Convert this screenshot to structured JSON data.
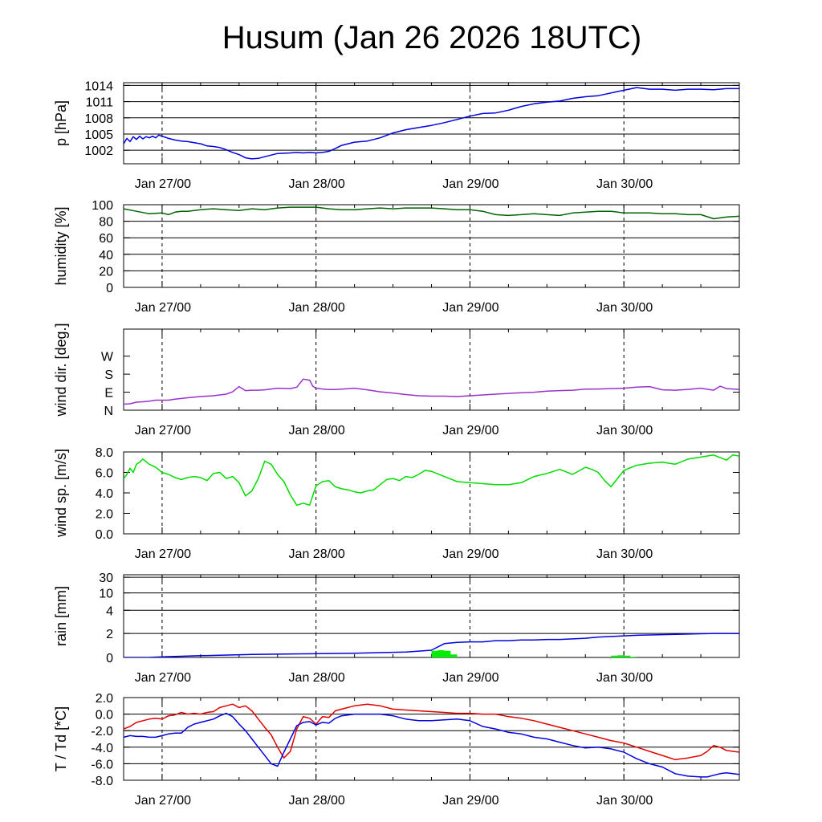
{
  "title": "Husum (Jan 26 2026 18UTC)",
  "x_tick_labels": [
    "Jan 27/00",
    "Jan 28/00",
    "Jan 29/00",
    "Jan 30/00"
  ],
  "chart_data": [
    {
      "type": "line",
      "id": "pressure",
      "ylabel": "p [hPa]",
      "ylim": [
        999.5,
        1014.5
      ],
      "yticks": [
        1002,
        1005,
        1008,
        1011,
        1014
      ],
      "ytick_labels": [
        "1002",
        "1005",
        "1008",
        "1011",
        "1014"
      ],
      "x_unit": "hours since Jan 26 18UTC",
      "xlim": [
        0,
        96
      ],
      "series": [
        {
          "name": "pressure",
          "color": "#0000e0",
          "x": [
            0,
            0.5,
            1,
            1.5,
            2,
            2.5,
            3,
            3.5,
            4,
            4.5,
            5,
            5.5,
            6,
            6.5,
            7,
            8,
            9,
            10,
            12,
            13,
            14,
            15,
            16,
            17,
            18,
            19,
            20,
            21,
            22,
            24,
            26,
            27,
            28,
            29,
            30,
            31,
            32,
            33,
            34,
            35,
            36,
            38,
            40,
            42,
            44,
            46,
            48,
            50,
            52,
            54,
            56,
            58,
            60,
            62,
            64,
            66,
            68,
            70,
            72,
            74,
            76,
            78,
            80,
            82,
            84,
            86,
            88,
            90,
            92,
            94,
            96
          ],
          "y": [
            1003.2,
            1004.2,
            1003.6,
            1004.5,
            1004.0,
            1004.6,
            1004.1,
            1004.5,
            1004.3,
            1004.6,
            1004.3,
            1004.8,
            1004.6,
            1004.4,
            1004.2,
            1003.9,
            1003.7,
            1003.6,
            1003.2,
            1002.8,
            1002.7,
            1002.5,
            1002.1,
            1001.6,
            1001.2,
            1000.6,
            1000.4,
            1000.5,
            1000.8,
            1001.4,
            1001.5,
            1001.6,
            1001.5,
            1001.6,
            1001.5,
            1001.6,
            1001.8,
            1002.3,
            1002.9,
            1003.2,
            1003.5,
            1003.7,
            1004.3,
            1005.2,
            1005.8,
            1006.2,
            1006.6,
            1007.1,
            1007.7,
            1008.3,
            1008.8,
            1008.9,
            1009.4,
            1010.1,
            1010.6,
            1010.9,
            1011.1,
            1011.6,
            1011.9,
            1012.1,
            1012.6,
            1013.1,
            1013.6,
            1013.3,
            1013.3,
            1013.1,
            1013.3,
            1013.3,
            1013.2,
            1013.4,
            1013.4
          ]
        }
      ]
    },
    {
      "type": "line",
      "id": "humidity",
      "ylabel": "humidity [%]",
      "ylim": [
        0,
        100
      ],
      "yticks": [
        0,
        20,
        40,
        60,
        80,
        100
      ],
      "ytick_labels": [
        "0",
        "20",
        "40",
        "60",
        "80",
        "100"
      ],
      "x_unit": "hours since Jan 26 18UTC",
      "xlim": [
        0,
        96
      ],
      "series": [
        {
          "name": "humidity",
          "color": "#006400",
          "x": [
            0,
            2,
            4,
            6,
            7,
            8,
            9,
            10,
            12,
            14,
            16,
            18,
            20,
            22,
            24,
            26,
            28,
            30,
            32,
            34,
            36,
            38,
            40,
            42,
            44,
            46,
            48,
            50,
            52,
            54,
            56,
            58,
            60,
            62,
            64,
            66,
            68,
            70,
            72,
            74,
            76,
            78,
            80,
            82,
            84,
            86,
            88,
            90,
            92,
            94,
            96
          ],
          "y": [
            95,
            92,
            89,
            90,
            88,
            91,
            92,
            92,
            94,
            95,
            94,
            93,
            95,
            94,
            96,
            97,
            97,
            97,
            95,
            94,
            94,
            95,
            96,
            95,
            96,
            96,
            96,
            95,
            94,
            94,
            92,
            88,
            87,
            88,
            89,
            88,
            87,
            90,
            91,
            92,
            92,
            90,
            90,
            90,
            89,
            89,
            88,
            88,
            83,
            85,
            86
          ]
        }
      ]
    },
    {
      "type": "line",
      "id": "wind_direction",
      "ylabel": "wind dir. [deg.]",
      "ylim": [
        0,
        405
      ],
      "yticks": [
        0,
        90,
        180,
        270
      ],
      "ytick_labels": [
        "N",
        "E",
        "S",
        "W"
      ],
      "x_unit": "hours since Jan 26 18UTC",
      "xlim": [
        0,
        96
      ],
      "series": [
        {
          "name": "wind direction",
          "color": "#9932cc",
          "x": [
            0,
            1,
            2,
            3,
            4,
            5,
            6,
            7,
            8,
            10,
            12,
            14,
            16,
            17,
            18,
            19,
            20,
            21,
            22,
            24,
            26,
            27,
            28,
            29,
            29.5,
            30,
            31,
            32,
            33,
            34,
            36,
            38,
            40,
            42,
            44,
            46,
            48,
            50,
            52,
            54,
            56,
            58,
            60,
            62,
            64,
            66,
            68,
            70,
            72,
            74,
            76,
            78,
            80,
            82,
            84,
            86,
            88,
            90,
            92,
            93,
            94,
            96
          ],
          "y": [
            30,
            32,
            40,
            42,
            45,
            50,
            50,
            50,
            55,
            62,
            68,
            72,
            80,
            92,
            118,
            98,
            100,
            100,
            102,
            110,
            108,
            115,
            155,
            150,
            120,
            110,
            106,
            103,
            103,
            105,
            110,
            102,
            92,
            86,
            78,
            72,
            70,
            70,
            68,
            72,
            76,
            80,
            84,
            87,
            90,
            95,
            98,
            100,
            105,
            106,
            108,
            110,
            115,
            118,
            102,
            100,
            104,
            110,
            100,
            120,
            108,
            104
          ]
        }
      ]
    },
    {
      "type": "line",
      "id": "wind_speed",
      "ylabel": "wind sp. [m/s]",
      "ylim": [
        0,
        8
      ],
      "yticks": [
        0,
        2,
        4,
        6,
        8
      ],
      "ytick_labels": [
        "0.0",
        "2.0",
        "4.0",
        "6.0",
        "8.0"
      ],
      "x_unit": "hours since Jan 26 18UTC",
      "xlim": [
        0,
        96
      ],
      "series": [
        {
          "name": "wind speed",
          "color": "#00dd00",
          "x": [
            0,
            0.5,
            1,
            1.5,
            2,
            2.5,
            3,
            4,
            5,
            6,
            7,
            8,
            9,
            10,
            11,
            12,
            13,
            14,
            15,
            16,
            17,
            18,
            19,
            20,
            21,
            22,
            23,
            24,
            25,
            26,
            27,
            28,
            29,
            30,
            31,
            32,
            33,
            34,
            35,
            36,
            37,
            38,
            39,
            40,
            41,
            42,
            43,
            44,
            45,
            46,
            47,
            48,
            50,
            52,
            54,
            56,
            58,
            60,
            62,
            64,
            66,
            68,
            70,
            72,
            73,
            74,
            75,
            76,
            78,
            80,
            82,
            84,
            86,
            88,
            90,
            92,
            94,
            95,
            96
          ],
          "y": [
            5.4,
            5.8,
            6.4,
            6.0,
            6.8,
            7.0,
            7.3,
            6.8,
            6.5,
            6.0,
            5.8,
            5.5,
            5.3,
            5.5,
            5.6,
            5.5,
            5.2,
            5.9,
            6.0,
            5.4,
            5.6,
            5.0,
            3.7,
            4.2,
            5.4,
            7.1,
            6.8,
            5.8,
            5.1,
            3.8,
            2.8,
            3.0,
            2.8,
            4.7,
            5.1,
            5.2,
            4.6,
            4.4,
            4.3,
            4.1,
            4.0,
            4.2,
            4.3,
            4.8,
            5.3,
            5.4,
            5.2,
            5.6,
            5.5,
            5.8,
            6.2,
            6.1,
            5.6,
            5.1,
            5.0,
            4.9,
            4.8,
            4.8,
            5.0,
            5.6,
            5.9,
            6.3,
            5.8,
            6.5,
            6.3,
            6.0,
            5.2,
            4.6,
            6.2,
            6.7,
            6.9,
            7.0,
            6.8,
            7.3,
            7.5,
            7.7,
            7.2,
            7.7,
            7.6
          ]
        }
      ]
    },
    {
      "type": "bar+line",
      "id": "rain",
      "ylabel": "rain [mm]",
      "y_scale": "nonlinear",
      "ylim": [
        0,
        30
      ],
      "yticks": [
        0,
        2,
        4,
        10,
        30
      ],
      "ytick_labels": [
        "0",
        "2",
        "4",
        "10",
        "30"
      ],
      "x_unit": "hours since Jan 26 18UTC",
      "xlim": [
        0,
        96
      ],
      "series": [
        {
          "name": "accumulated precipitation",
          "color": "#0000e0",
          "x": [
            0,
            4,
            6,
            12,
            20,
            28,
            36,
            44,
            48,
            50,
            52,
            54,
            56,
            58,
            60,
            62,
            64,
            66,
            68,
            70,
            72,
            74,
            76,
            78,
            80,
            84,
            88,
            92,
            96
          ],
          "y": [
            0,
            0,
            0.05,
            0.15,
            0.25,
            0.3,
            0.35,
            0.45,
            0.6,
            1.15,
            1.25,
            1.3,
            1.3,
            1.4,
            1.4,
            1.45,
            1.45,
            1.5,
            1.5,
            1.55,
            1.6,
            1.7,
            1.75,
            1.8,
            1.85,
            1.9,
            1.95,
            2.0,
            2.0
          ]
        },
        {
          "name": "hourly precipitation",
          "color": "#00ee00",
          "kind": "bar",
          "x": [
            48,
            49,
            50,
            51,
            76,
            77,
            78,
            79
          ],
          "y": [
            0.55,
            0.6,
            0.55,
            0.25,
            0.15,
            0.18,
            0.15,
            0.05
          ]
        }
      ]
    },
    {
      "type": "line",
      "id": "temperature",
      "ylabel": "T / Td [*C]",
      "ylim": [
        -8,
        2
      ],
      "yticks": [
        -8,
        -6,
        -4,
        -2,
        0,
        2
      ],
      "ytick_labels": [
        "-8.0",
        "-6.0",
        "-4.0",
        "-2.0",
        "0.0",
        "2.0"
      ],
      "x_unit": "hours since Jan 26 18UTC",
      "xlim": [
        0,
        96
      ],
      "series": [
        {
          "name": "T",
          "color": "#e00000",
          "x": [
            0,
            1,
            2,
            3,
            4,
            5,
            6,
            7,
            8,
            9,
            10,
            11,
            12,
            13,
            14,
            15,
            16,
            17,
            18,
            19,
            20,
            21,
            22,
            23,
            24,
            25,
            26,
            27,
            28,
            29,
            30,
            31,
            32,
            33,
            34,
            36,
            38,
            40,
            42,
            44,
            46,
            48,
            50,
            52,
            54,
            56,
            58,
            60,
            62,
            64,
            66,
            68,
            70,
            72,
            74,
            76,
            78,
            80,
            82,
            84,
            86,
            88,
            90,
            91,
            92,
            93,
            94,
            96
          ],
          "y": [
            -1.8,
            -1.5,
            -1.0,
            -0.8,
            -0.6,
            -0.5,
            -0.6,
            -0.2,
            -0.1,
            0.2,
            0.0,
            0.1,
            0.0,
            0.2,
            0.3,
            0.8,
            1.0,
            1.2,
            0.8,
            1.0,
            0.4,
            -0.6,
            -1.6,
            -2.5,
            -4.0,
            -5.3,
            -4.5,
            -1.8,
            -0.3,
            -0.5,
            -1.2,
            -0.3,
            -0.4,
            0.4,
            0.6,
            1.0,
            1.2,
            1.0,
            0.6,
            0.5,
            0.4,
            0.3,
            0.2,
            0.1,
            0.1,
            0.0,
            0.0,
            -0.3,
            -0.5,
            -0.8,
            -1.2,
            -1.6,
            -2.0,
            -2.4,
            -2.8,
            -3.2,
            -3.5,
            -4.0,
            -4.5,
            -5.0,
            -5.5,
            -5.3,
            -5.0,
            -4.5,
            -3.8,
            -4.0,
            -4.4,
            -4.6
          ]
        },
        {
          "name": "Td",
          "color": "#0000e0",
          "x": [
            0,
            1,
            2,
            3,
            4,
            5,
            6,
            7,
            8,
            9,
            10,
            11,
            12,
            13,
            14,
            15,
            16,
            17,
            18,
            19,
            20,
            21,
            22,
            23,
            24,
            25,
            26,
            27,
            28,
            29,
            30,
            31,
            32,
            33,
            34,
            36,
            38,
            40,
            42,
            44,
            46,
            48,
            50,
            52,
            54,
            56,
            58,
            60,
            62,
            64,
            66,
            68,
            70,
            72,
            74,
            76,
            78,
            80,
            82,
            84,
            86,
            88,
            90,
            91,
            92,
            93,
            94,
            96
          ],
          "y": [
            -2.8,
            -2.6,
            -2.7,
            -2.7,
            -2.8,
            -2.8,
            -2.6,
            -2.4,
            -2.3,
            -2.3,
            -1.6,
            -1.2,
            -1.0,
            -0.8,
            -0.6,
            -0.2,
            0.1,
            -0.3,
            -1.2,
            -2.0,
            -3.0,
            -4.0,
            -5.0,
            -6.0,
            -6.3,
            -4.6,
            -3.0,
            -1.4,
            -1.0,
            -0.9,
            -1.3,
            -1.0,
            -1.1,
            -0.5,
            -0.2,
            0.0,
            0.0,
            0.0,
            -0.2,
            -0.6,
            -0.8,
            -0.8,
            -0.7,
            -0.6,
            -0.8,
            -1.5,
            -1.8,
            -2.2,
            -2.4,
            -2.8,
            -3.0,
            -3.4,
            -3.8,
            -4.1,
            -4.0,
            -4.2,
            -4.6,
            -5.4,
            -6.0,
            -6.4,
            -7.2,
            -7.5,
            -7.6,
            -7.6,
            -7.4,
            -7.2,
            -7.1,
            -7.3
          ]
        }
      ]
    }
  ]
}
